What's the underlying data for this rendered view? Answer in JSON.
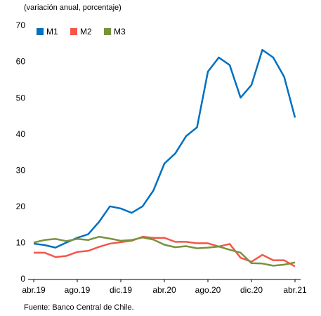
{
  "chart_data": {
    "type": "line",
    "subtitle": "(variación anual, porcentaje)",
    "source": "Fuente: Banco Central de Chile.",
    "categories": [
      "abr.19",
      null,
      null,
      null,
      "ago.19",
      null,
      null,
      null,
      "dic.19",
      null,
      null,
      null,
      "abr.20",
      null,
      null,
      null,
      "ago.20",
      null,
      null,
      null,
      "dic.20",
      null,
      null,
      null,
      "abr.21"
    ],
    "series": [
      {
        "name": "M1",
        "color": "#0070c0",
        "values": [
          9.9,
          9.5,
          8.8,
          10.2,
          11.5,
          12.5,
          15.9,
          20.2,
          19.6,
          18.4,
          20.2,
          24.6,
          32,
          34.8,
          39.6,
          42,
          57.4,
          61.3,
          59.2,
          50.2,
          53.7,
          63.4,
          61.3,
          56,
          44.7
        ]
      },
      {
        "name": "M2",
        "color": "#f4564a",
        "values": [
          7.4,
          7.4,
          6.2,
          6.5,
          7.6,
          7.9,
          9.0,
          9.9,
          10.3,
          10.7,
          11.8,
          11.5,
          11.5,
          10.4,
          10.4,
          10.0,
          10.0,
          9.1,
          9.8,
          6.0,
          4.9,
          6.8,
          5.3,
          5.3,
          3.6
        ]
      },
      {
        "name": "M3",
        "color": "#77933c",
        "values": [
          10.2,
          10.9,
          11.2,
          10.6,
          11.2,
          10.9,
          11.8,
          11.3,
          10.7,
          10.9,
          11.6,
          11.0,
          9.6,
          8.9,
          9.2,
          8.6,
          8.8,
          9.1,
          8.2,
          7.4,
          4.5,
          4.4,
          3.8,
          4.1,
          4.7
        ]
      }
    ],
    "ylim": [
      0,
      70
    ],
    "yticks": [
      0,
      10,
      20,
      30,
      40,
      50,
      60,
      70
    ],
    "grid": false
  }
}
